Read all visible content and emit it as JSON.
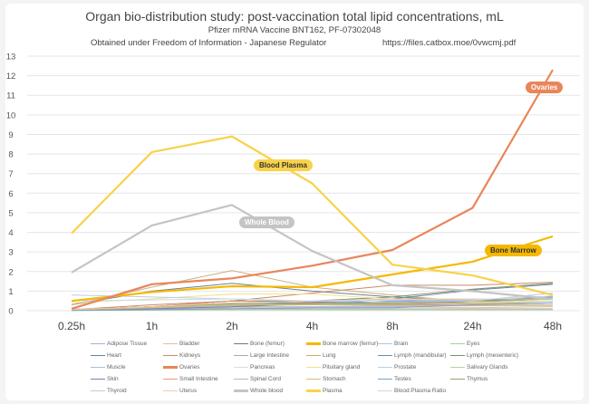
{
  "chart_data": {
    "type": "line",
    "title": "Organ bio-distribution study: post-vaccination total lipid concentrations, mL",
    "subtitle": "Pfizer mRNA Vaccine BNT162, PF-07302048",
    "source_note": "Obtained under Freedom of Information - Japanese Regulator",
    "source_url": "https://files.catbox.moe/0vwcmj.pdf",
    "categories": [
      "0.25h",
      "1h",
      "2h",
      "4h",
      "8h",
      "24h",
      "48h"
    ],
    "ylim": [
      0,
      13
    ],
    "yticks": [
      "0",
      "1",
      "2",
      "3",
      "4",
      "5",
      "6",
      "7",
      "8",
      "9",
      "10",
      "11",
      "12",
      "13"
    ],
    "grid": true,
    "legend_position": "bottom",
    "annotations": [
      {
        "text": "Blood Plasma",
        "series": "Plasma",
        "bg": "#f8d24a",
        "fg": "#333333"
      },
      {
        "text": "Whole Blood",
        "series": "Whole blood",
        "bg": "#c4c4c4",
        "fg": "#ffffff"
      },
      {
        "text": "Ovaries",
        "series": "Ovaries",
        "bg": "#e9855a",
        "fg": "#ffffff"
      },
      {
        "text": "Bone Marrow",
        "series": "Bone marrow (femur)",
        "bg": "#f5b800",
        "fg": "#333333"
      }
    ],
    "series": [
      {
        "name": "Adipose Tissue",
        "color": "#9fb4d0",
        "width": 1,
        "values": [
          0.06,
          0.15,
          0.25,
          0.3,
          0.35,
          0.3,
          0.3
        ]
      },
      {
        "name": "Bladder",
        "color": "#f0b896",
        "width": 1,
        "values": [
          0.04,
          0.06,
          0.15,
          0.2,
          0.2,
          0.15,
          0.2
        ]
      },
      {
        "name": "Bone (femur)",
        "color": "#777777",
        "width": 1,
        "values": [
          0.05,
          0.2,
          0.5,
          0.45,
          0.4,
          0.45,
          0.6
        ]
      },
      {
        "name": "Bone marrow (femur)",
        "color": "#f5b800",
        "width": 2.2,
        "values": [
          0.5,
          0.95,
          1.25,
          1.2,
          1.85,
          2.5,
          3.8
        ]
      },
      {
        "name": "Brain",
        "color": "#a9c9e6",
        "width": 1,
        "values": [
          0.05,
          0.05,
          0.05,
          0.05,
          0.05,
          0.05,
          0.05
        ]
      },
      {
        "name": "Eyes",
        "color": "#a9d18e",
        "width": 1,
        "values": [
          0.01,
          0.03,
          0.05,
          0.05,
          0.05,
          0.05,
          0.05
        ]
      },
      {
        "name": "Heart",
        "color": "#6c7f9a",
        "width": 1,
        "values": [
          0.3,
          1.0,
          1.4,
          1.0,
          0.7,
          0.5,
          0.7
        ]
      },
      {
        "name": "Kidneys",
        "color": "#c98a6a",
        "width": 1,
        "values": [
          0.05,
          0.3,
          0.5,
          0.9,
          1.3,
          1.3,
          1.45
        ]
      },
      {
        "name": "Large Intestine",
        "color": "#aaaaaa",
        "width": 1,
        "values": [
          0.02,
          0.1,
          0.3,
          0.3,
          0.3,
          0.3,
          0.4
        ]
      },
      {
        "name": "Lung",
        "color": "#c6ad7a",
        "width": 1,
        "values": [
          0.3,
          1.2,
          2.05,
          1.2,
          0.8,
          0.45,
          0.6
        ]
      },
      {
        "name": "Lymph (mandibular)",
        "color": "#708aa3",
        "width": 1,
        "values": [
          0.05,
          0.2,
          0.4,
          0.4,
          0.6,
          1.05,
          1.35
        ]
      },
      {
        "name": "Lymph (mesenteric)",
        "color": "#7f8f6e",
        "width": 1,
        "values": [
          0.05,
          0.2,
          0.5,
          0.5,
          0.7,
          1.1,
          1.4
        ]
      },
      {
        "name": "Muscle",
        "color": "#a9bed6",
        "width": 1,
        "values": [
          0.1,
          0.1,
          0.2,
          0.2,
          0.2,
          0.3,
          0.4
        ]
      },
      {
        "name": "Ovaries",
        "color": "#e9855a",
        "width": 2.2,
        "values": [
          0.1,
          1.35,
          1.65,
          2.3,
          3.1,
          5.25,
          12.3
        ]
      },
      {
        "name": "Pancreas",
        "color": "#dddddd",
        "width": 1,
        "values": [
          0.08,
          0.15,
          0.35,
          0.5,
          0.4,
          0.3,
          0.3
        ]
      },
      {
        "name": "Pituitary gland",
        "color": "#f3e08a",
        "width": 1,
        "values": [
          0.4,
          0.6,
          0.85,
          0.85,
          0.6,
          0.45,
          0.4
        ]
      },
      {
        "name": "Prostate",
        "color": "#b9d0e6",
        "width": 1,
        "values": [
          0.05,
          0.15,
          0.3,
          0.3,
          0.25,
          0.25,
          0.25
        ]
      },
      {
        "name": "Salivary Glands",
        "color": "#b4d3a0",
        "width": 1,
        "values": [
          0.05,
          0.15,
          0.3,
          0.35,
          0.35,
          0.4,
          0.5
        ]
      },
      {
        "name": "Skin",
        "color": "#6f86b0",
        "width": 1,
        "values": [
          0.02,
          0.1,
          0.2,
          0.35,
          0.5,
          0.55,
          0.7
        ]
      },
      {
        "name": "Small Intestine",
        "color": "#e8997a",
        "width": 1,
        "values": [
          0.05,
          0.2,
          0.5,
          0.4,
          0.35,
          0.35,
          0.4
        ]
      },
      {
        "name": "Spinal Cord",
        "color": "#b8b8b8",
        "width": 1,
        "values": [
          0.02,
          0.05,
          0.1,
          0.1,
          0.1,
          0.1,
          0.1
        ]
      },
      {
        "name": "Stomach",
        "color": "#dcbc72",
        "width": 1,
        "values": [
          0.05,
          0.15,
          0.3,
          0.3,
          0.25,
          0.25,
          0.3
        ]
      },
      {
        "name": "Testes",
        "color": "#7aa0cf",
        "width": 1,
        "values": [
          0.02,
          0.05,
          0.1,
          0.15,
          0.15,
          0.3,
          0.4
        ]
      },
      {
        "name": "Thymus",
        "color": "#8aa870",
        "width": 1,
        "values": [
          0.05,
          0.2,
          0.35,
          0.35,
          0.4,
          0.5,
          0.6
        ]
      },
      {
        "name": "Thyroid",
        "color": "#b9cde4",
        "width": 1,
        "values": [
          0.8,
          0.7,
          0.6,
          0.5,
          0.45,
          0.5,
          0.9
        ]
      },
      {
        "name": "Uterus",
        "color": "#f3c9a6",
        "width": 1,
        "values": [
          0.05,
          0.2,
          0.4,
          0.5,
          0.6,
          0.6,
          0.6
        ]
      },
      {
        "name": "Whole blood",
        "color": "#c4c4c4",
        "width": 2.2,
        "values": [
          1.95,
          4.35,
          5.4,
          3.05,
          1.3,
          1.0,
          0.6
        ]
      },
      {
        "name": "Plasma",
        "color": "#f8d24a",
        "width": 2.2,
        "values": [
          3.95,
          8.1,
          8.9,
          6.5,
          2.35,
          1.8,
          0.8
        ]
      },
      {
        "name": "Blood:Plasma Ratio",
        "color": "#c7d9ec",
        "width": 1,
        "values": [
          0.5,
          0.55,
          0.6,
          0.5,
          0.55,
          0.55,
          0.75
        ]
      }
    ]
  }
}
